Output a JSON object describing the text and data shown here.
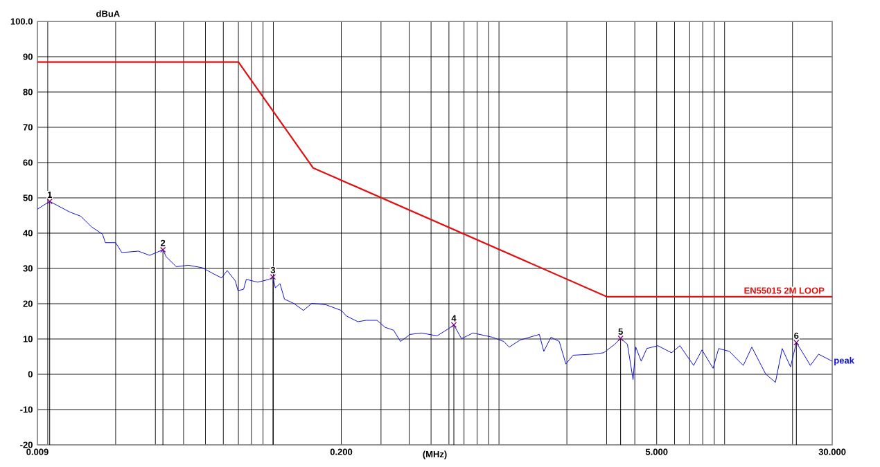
{
  "chart_data": {
    "type": "line",
    "xlabel": "(MHz)",
    "ylabel": "dBuA",
    "log": "x",
    "grid": true,
    "xlim": [
      0.009,
      30
    ],
    "ylim": [
      -20,
      100
    ],
    "xticks": [
      {
        "value": 0.009,
        "label": "0.009"
      },
      {
        "value": 0.01,
        "label": null
      },
      {
        "value": 0.02,
        "label": null
      },
      {
        "value": 0.03,
        "label": null
      },
      {
        "value": 0.04,
        "label": null
      },
      {
        "value": 0.05,
        "label": null
      },
      {
        "value": 0.06,
        "label": null
      },
      {
        "value": 0.07,
        "label": null
      },
      {
        "value": 0.08,
        "label": null
      },
      {
        "value": 0.09,
        "label": null
      },
      {
        "value": 0.1,
        "label": null
      },
      {
        "value": 0.2,
        "label": "0.200"
      },
      {
        "value": 0.3,
        "label": null
      },
      {
        "value": 0.4,
        "label": null
      },
      {
        "value": 0.5,
        "label": null
      },
      {
        "value": 0.6,
        "label": null
      },
      {
        "value": 0.7,
        "label": null
      },
      {
        "value": 0.8,
        "label": null
      },
      {
        "value": 0.9,
        "label": null
      },
      {
        "value": 1,
        "label": null
      },
      {
        "value": 2,
        "label": null
      },
      {
        "value": 3,
        "label": null
      },
      {
        "value": 4,
        "label": null
      },
      {
        "value": 5,
        "label": "5.000"
      },
      {
        "value": 6,
        "label": null
      },
      {
        "value": 7,
        "label": null
      },
      {
        "value": 8,
        "label": null
      },
      {
        "value": 9,
        "label": null
      },
      {
        "value": 10,
        "label": null
      },
      {
        "value": 20,
        "label": null
      },
      {
        "value": 30,
        "label": "30.000"
      }
    ],
    "yticks": [
      -20,
      -10,
      0,
      10,
      20,
      30,
      40,
      50,
      60,
      70,
      80,
      90,
      {
        "value": 100,
        "label": "100.0"
      }
    ],
    "series": [
      {
        "name": "EN55015 2M LOOP",
        "color": "#e01010",
        "x": [
          0.009,
          0.07,
          0.15,
          3,
          30
        ],
        "values": [
          88.5,
          88.5,
          58.5,
          22,
          22
        ]
      },
      {
        "name": "peak",
        "color": "#1010d0",
        "x": [
          0.009,
          0.0102,
          0.0125,
          0.014,
          0.0157,
          0.0175,
          0.018,
          0.02,
          0.0213,
          0.0252,
          0.0283,
          0.0324,
          0.0335,
          0.0371,
          0.042,
          0.0484,
          0.0542,
          0.059,
          0.0624,
          0.0678,
          0.0697,
          0.0738,
          0.0759,
          0.0852,
          0.0957,
          0.0996,
          0.102,
          0.107,
          0.112,
          0.123,
          0.136,
          0.148,
          0.171,
          0.2,
          0.211,
          0.237,
          0.258,
          0.288,
          0.313,
          0.341,
          0.366,
          0.404,
          0.453,
          0.532,
          0.597,
          0.631,
          0.682,
          0.768,
          0.935,
          1.05,
          1.11,
          1.24,
          1.51,
          1.58,
          1.7,
          1.85,
          1.98,
          2.13,
          2.6,
          2.91,
          3.08,
          3.26,
          3.46,
          3.71,
          3.93,
          4.04,
          4.27,
          4.52,
          5.06,
          5.82,
          6.34,
          7.29,
          7.94,
          8.89,
          9.41,
          10.5,
          12.1,
          13.2,
          15.2,
          16.8,
          18.0,
          19.6,
          20.8,
          22.6,
          24.0,
          26.1,
          30
        ],
        "values": [
          46.8,
          49,
          46,
          44.8,
          41.7,
          39.7,
          37.3,
          37.3,
          34.5,
          34.9,
          33.7,
          35.3,
          33.3,
          30.5,
          30.9,
          30.2,
          28.5,
          27.3,
          29.4,
          26.5,
          23.7,
          24.1,
          26.9,
          26.1,
          26.9,
          27.6,
          24.5,
          25.7,
          21.3,
          20.1,
          18.1,
          20.1,
          19.7,
          18.1,
          16.5,
          14.9,
          15.3,
          15.3,
          13.3,
          12.5,
          9.3,
          11.3,
          11.7,
          10.9,
          12.9,
          14,
          10.1,
          11.7,
          10.5,
          9.3,
          7.7,
          9.7,
          11.3,
          6.5,
          10.5,
          9.3,
          2.9,
          5.4,
          5.7,
          6.1,
          7.3,
          8.5,
          10.2,
          8.5,
          -1.5,
          7.7,
          3.7,
          7.3,
          8.1,
          6.1,
          8.1,
          2.5,
          6.9,
          1.7,
          7.3,
          6.5,
          2.5,
          7.7,
          0.1,
          -2.3,
          7.3,
          2.1,
          9,
          5.3,
          2.5,
          5.7,
          3.7
        ]
      },
      {
        "type": "lollipop",
        "color": "#800080",
        "marker": "cross",
        "x": [
          0.0102,
          0.0324,
          0.0996,
          0.631,
          3.46,
          20.8
        ],
        "values": [
          49,
          35.3,
          27.6,
          14,
          10.2,
          9
        ]
      }
    ],
    "annotations": [
      {
        "text": "1",
        "x": 0.0102,
        "y": 49
      },
      {
        "text": "2",
        "x": 0.0324,
        "y": 35.3
      },
      {
        "text": "3",
        "x": 0.0996,
        "y": 27.6
      },
      {
        "text": "4",
        "x": 0.631,
        "y": 14
      },
      {
        "text": "5",
        "x": 3.46,
        "y": 10.2
      },
      {
        "text": "6",
        "x": 20.8,
        "y": 9
      }
    ]
  }
}
